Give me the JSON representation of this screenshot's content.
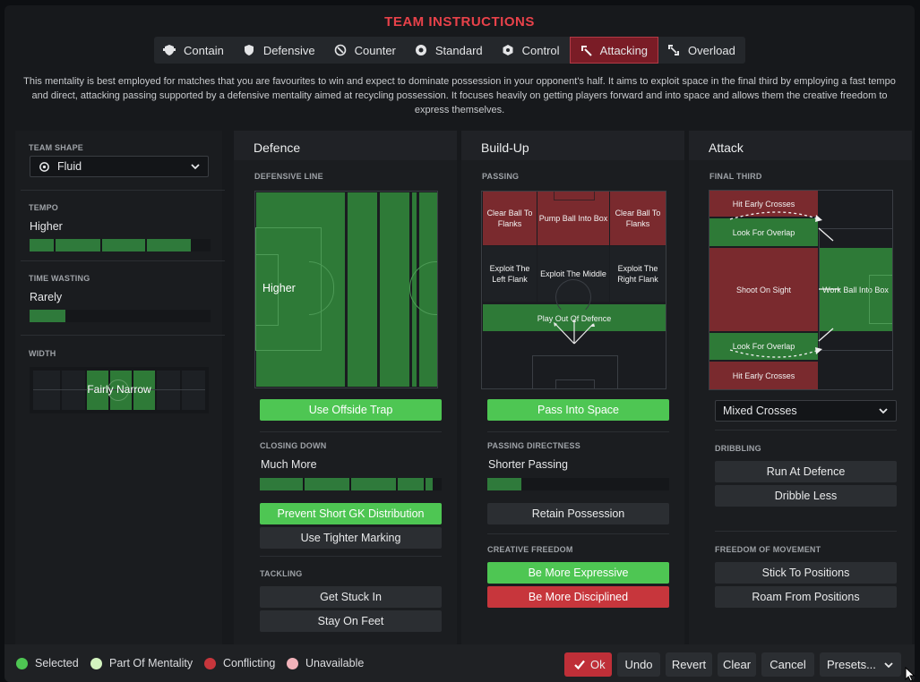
{
  "title": "TEAM INSTRUCTIONS",
  "tabs": [
    {
      "label": "Contain",
      "icon": "shield-wing-icon"
    },
    {
      "label": "Defensive",
      "icon": "shield-icon"
    },
    {
      "label": "Counter",
      "icon": "counter-icon"
    },
    {
      "label": "Standard",
      "icon": "balance-icon"
    },
    {
      "label": "Control",
      "icon": "control-icon"
    },
    {
      "label": "Attacking",
      "icon": "attacking-icon",
      "active": true
    },
    {
      "label": "Overload",
      "icon": "overload-icon"
    }
  ],
  "description": "This mentality is best employed for matches that you are favourites to win and expect to dominate possession in your opponent's half. It aims to exploit space in the final third by employing a fast tempo and direct, attacking passing supported by a defensive mentality aimed at recycling possession. It focuses heavily on getting players forward and into space and allows them the creative freedom to express themselves.",
  "left": {
    "team_shape_label": "TEAM SHAPE",
    "team_shape_value": "Fluid",
    "tempo_label": "TEMPO",
    "tempo_value": "Higher",
    "tempo_level": 0.8,
    "time_wasting_label": "TIME WASTING",
    "time_wasting_value": "Rarely",
    "time_wasting_level": 0.2,
    "width_label": "WIDTH",
    "width_value": "Fairly Narrow",
    "width_level": 0.4
  },
  "defence": {
    "header": "Defence",
    "defensive_line_label": "DEFENSIVE LINE",
    "defensive_line_value": "Higher",
    "offside_trap": "Use Offside Trap",
    "closing_down_label": "CLOSING DOWN",
    "closing_down_value": "Much More",
    "closing_down_level": 1.0,
    "prevent_gk": "Prevent Short GK Distribution",
    "tighter_marking": "Use Tighter Marking",
    "tackling_label": "TACKLING",
    "get_stuck_in": "Get Stuck In",
    "stay_on_feet": "Stay On Feet"
  },
  "buildup": {
    "header": "Build-Up",
    "passing_label": "PASSING",
    "clear_left": "Clear Ball To Flanks",
    "pump_box": "Pump Ball Into Box",
    "clear_right": "Clear Ball To Flanks",
    "exploit_left": "Exploit The Left Flank",
    "exploit_middle": "Exploit The Middle",
    "exploit_right": "Exploit The Right Flank",
    "play_out": "Play Out Of Defence",
    "pass_into_space": "Pass Into Space",
    "directness_label": "PASSING DIRECTNESS",
    "directness_value": "Shorter Passing",
    "directness_level": 0.2,
    "retain_possession": "Retain Possession",
    "creative_label": "CREATIVE FREEDOM",
    "more_expressive": "Be More Expressive",
    "more_disciplined": "Be More Disciplined"
  },
  "attack": {
    "header": "Attack",
    "final_third_label": "FINAL THIRD",
    "hit_early_top": "Hit Early Crosses",
    "overlap_top": "Look For Overlap",
    "shoot_on_sight": "Shoot On Sight",
    "work_into_box": "Work Ball Into Box",
    "overlap_bottom": "Look For Overlap",
    "hit_early_bottom": "Hit Early Crosses",
    "crossing_value": "Mixed Crosses",
    "dribbling_label": "DRIBBLING",
    "run_at_defence": "Run At Defence",
    "dribble_less": "Dribble Less",
    "freedom_label": "FREEDOM OF MOVEMENT",
    "stick_to_positions": "Stick To Positions",
    "roam_from_positions": "Roam From Positions"
  },
  "legend": [
    {
      "label": "Selected",
      "color": "#4ec653"
    },
    {
      "label": "Part Of Mentality",
      "color": "#d4f5c0"
    },
    {
      "label": "Conflicting",
      "color": "#c7363c"
    },
    {
      "label": "Unavailable",
      "color": "#f2b3ba"
    }
  ],
  "footer": {
    "ok": "Ok",
    "undo": "Undo",
    "revert": "Revert",
    "clear": "Clear",
    "cancel": "Cancel",
    "presets": "Presets..."
  }
}
